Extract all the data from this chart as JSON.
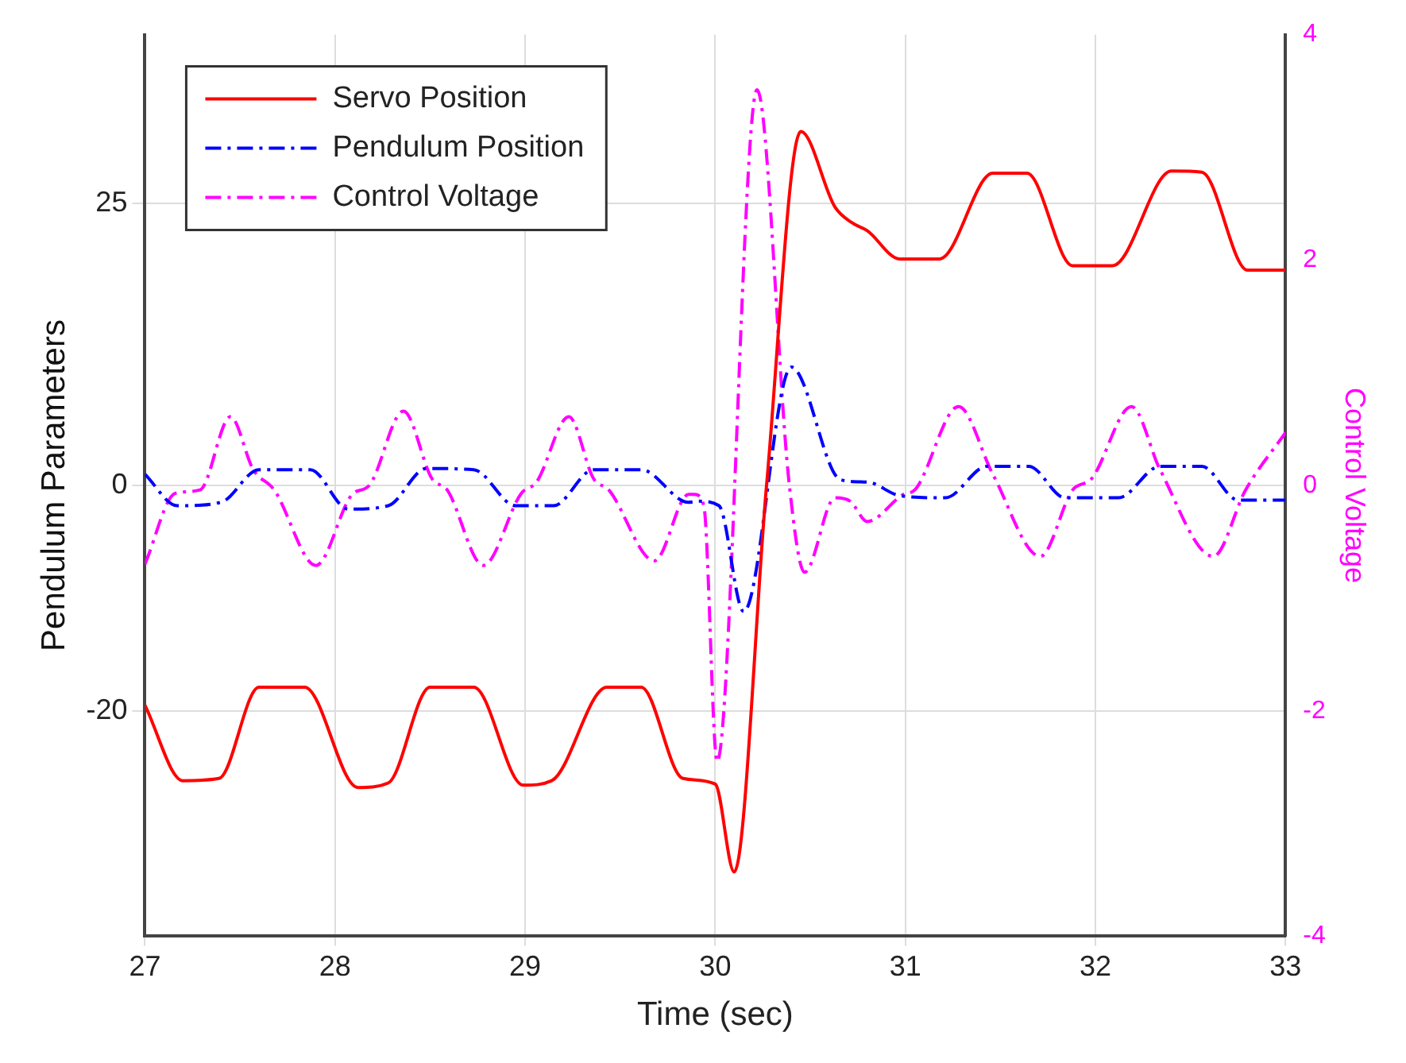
{
  "chart_data": {
    "type": "line",
    "xlabel": "Time (sec)",
    "ylabel": "Pendulum Parameters",
    "y2label": "Control Voltage",
    "xlim": [
      27,
      33
    ],
    "xticks": [
      27,
      28,
      29,
      30,
      31,
      32,
      33
    ],
    "ylim": [
      -40,
      40
    ],
    "yticks": [
      -20,
      0,
      25
    ],
    "y2lim": [
      -4,
      4
    ],
    "y2ticks": [
      -4,
      -2,
      0,
      2,
      4
    ],
    "grid": true,
    "legend": "top left",
    "marker": "none",
    "series": [
      {
        "name": "Servo Position",
        "color": "#ff0000",
        "line_style": "solid",
        "x": [
          27,
          27.2,
          27.39,
          27.6,
          27.84,
          28.12,
          28.28,
          28.5,
          28.73,
          28.99,
          29.14,
          29.43,
          29.61,
          29.83,
          30.0,
          30.1,
          30.27,
          30.45,
          30.63,
          30.72,
          30.8,
          30.97,
          31.18,
          31.46,
          31.64,
          31.88,
          32.09,
          32.4,
          32.56,
          32.8,
          33
        ],
        "values": [
          -19.5,
          -26.2,
          -26,
          -17.9,
          -17.9,
          -26.8,
          -26.4,
          -17.9,
          -17.9,
          -26.6,
          -26.2,
          -17.9,
          -17.9,
          -26,
          -26.5,
          -34.3,
          0,
          31.4,
          24.7,
          23.3,
          22.6,
          20.1,
          20.1,
          27.7,
          27.7,
          19.5,
          19.5,
          27.9,
          27.8,
          19.1,
          19.1
        ]
      },
      {
        "name": "Pendulum Position",
        "color": "#0000ff",
        "line_style": "dashed",
        "x": [
          27,
          27.17,
          27.4,
          27.6,
          27.87,
          28.07,
          28.28,
          28.48,
          28.73,
          28.95,
          29.15,
          29.36,
          29.61,
          29.86,
          29.91,
          30.02,
          30.15,
          30.4,
          30.66,
          30.8,
          30.97,
          31.21,
          31.43,
          31.65,
          31.84,
          32.12,
          32.34,
          32.56,
          32.75,
          33
        ],
        "values": [
          1.0,
          -1.8,
          -1.5,
          1.4,
          1.4,
          -2.1,
          -1.8,
          1.5,
          1.4,
          -1.8,
          -1.8,
          1.4,
          1.4,
          -1.5,
          -1.4,
          -1.8,
          -11.2,
          10.5,
          0.5,
          0.3,
          -0.9,
          -1.1,
          1.7,
          1.7,
          -1.1,
          -1.1,
          1.7,
          1.7,
          -1.3,
          -1.3
        ]
      },
      {
        "name": "Control Voltage",
        "color": "#ff00ff",
        "line_style": "dashed",
        "axis": "y2",
        "x": [
          27,
          27.16,
          27.29,
          27.45,
          27.57,
          27.68,
          27.9,
          28.09,
          28.18,
          28.36,
          28.51,
          28.59,
          28.78,
          28.98,
          29.06,
          29.23,
          29.36,
          29.44,
          29.68,
          29.86,
          29.89,
          29.94,
          30.01,
          30.22,
          30.39,
          30.47,
          30.63,
          30.71,
          30.8,
          30.99,
          31.05,
          31.28,
          31.46,
          31.71,
          31.88,
          31.98,
          32.19,
          32.34,
          32.62,
          32.79,
          33
        ],
        "values": [
          -0.7,
          -0.07,
          -0.04,
          0.61,
          0.14,
          -0.04,
          -0.71,
          -0.08,
          0,
          0.66,
          0.06,
          -0.04,
          -0.71,
          -0.07,
          0.03,
          0.61,
          0.06,
          -0.04,
          -0.67,
          -0.08,
          -0.08,
          -0.18,
          -2.45,
          3.51,
          0,
          -0.77,
          -0.11,
          -0.14,
          -0.32,
          -0.08,
          -0.04,
          0.7,
          0.1,
          -0.63,
          -0.04,
          0.06,
          0.7,
          0.14,
          -0.63,
          -0.04,
          0.47
        ]
      }
    ]
  }
}
